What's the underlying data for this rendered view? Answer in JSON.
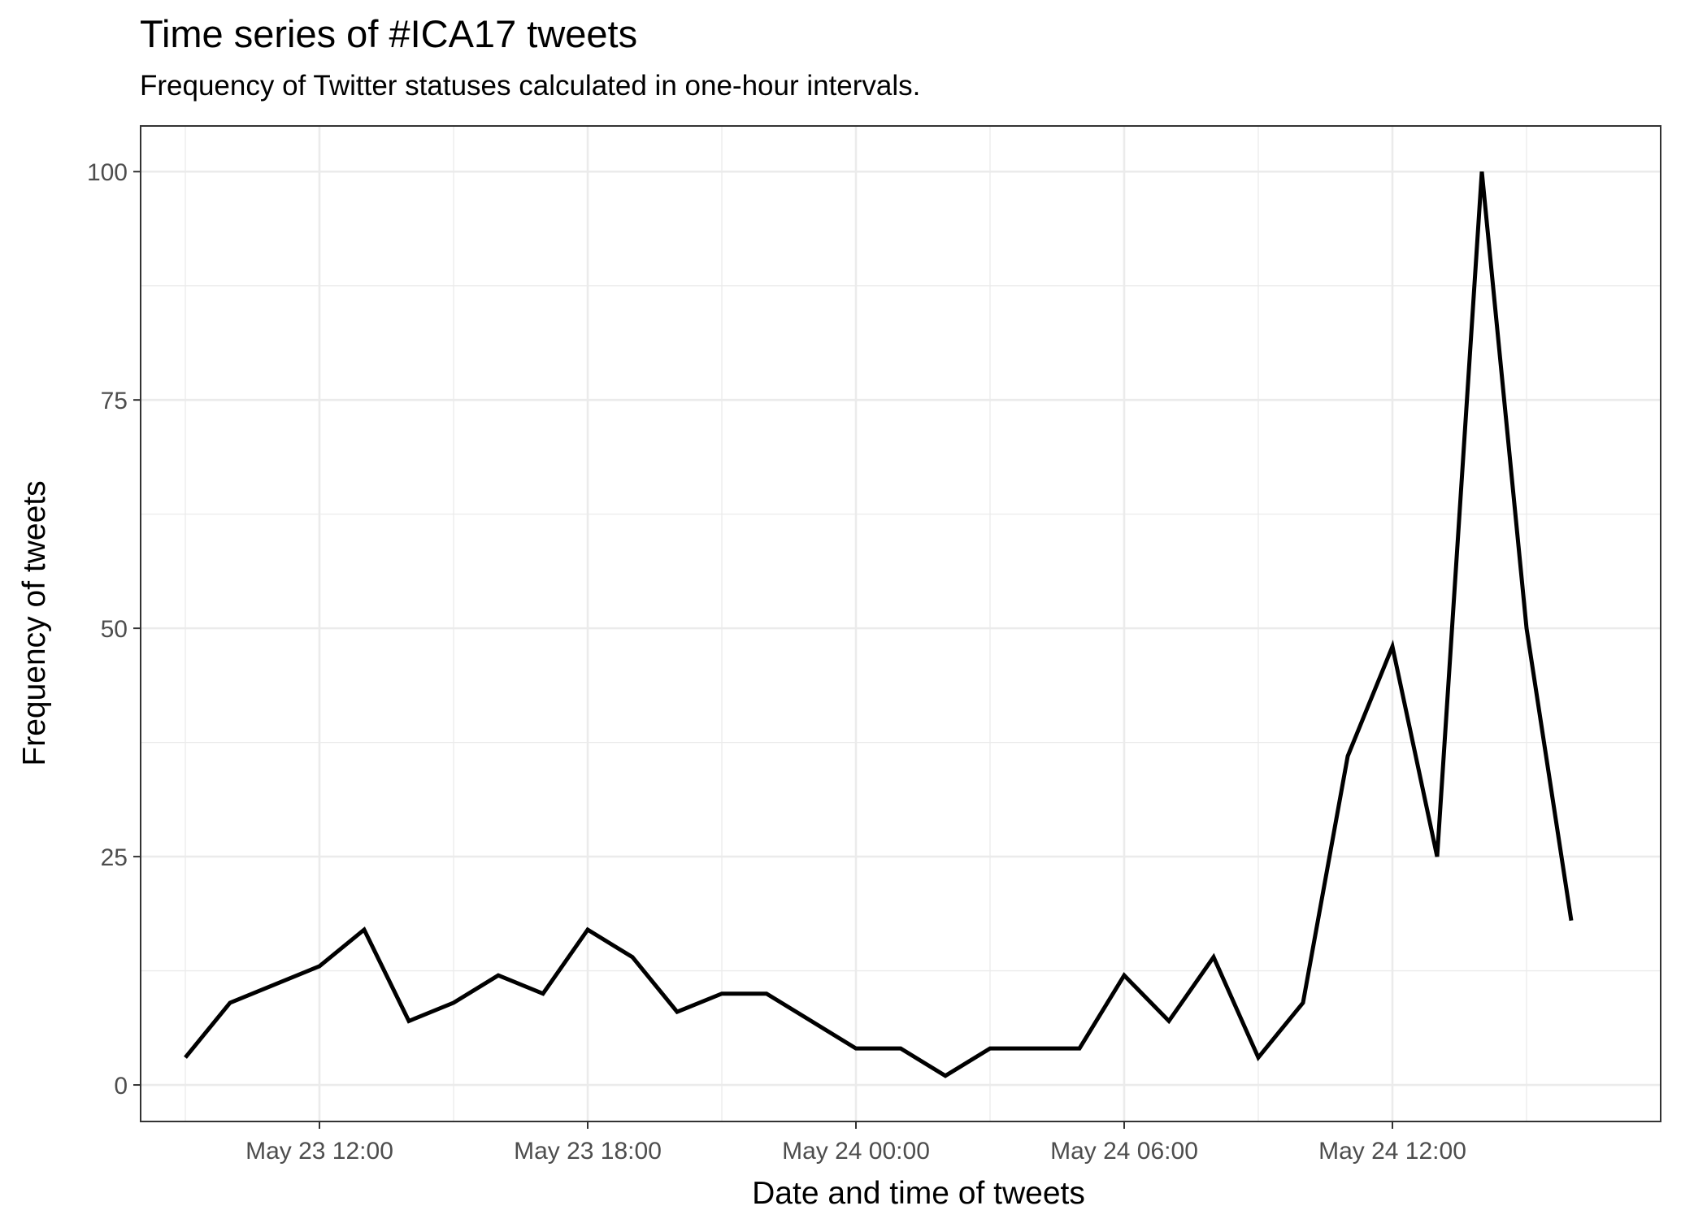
{
  "chart_data": {
    "type": "line",
    "title": "Time series of #ICA17 tweets",
    "subtitle": "Frequency of Twitter statuses calculated in one-hour intervals.",
    "xlabel": "Date and time of tweets",
    "ylabel": "Frequency of tweets",
    "x_tick_labels": [
      "May 23 12:00",
      "May 23 18:00",
      "May 24 00:00",
      "May 24 06:00",
      "May 24 12:00"
    ],
    "y_ticks": [
      0,
      25,
      50,
      75,
      100
    ],
    "ylim": [
      -4,
      105
    ],
    "xlim": [
      "2017-05-23 08:00",
      "2017-05-24 18:00"
    ],
    "grid": true,
    "series": [
      {
        "x": [
          "2017-05-23 09:00",
          "2017-05-23 10:00",
          "2017-05-23 11:00",
          "2017-05-23 12:00",
          "2017-05-23 13:00",
          "2017-05-23 14:00",
          "2017-05-23 15:00",
          "2017-05-23 16:00",
          "2017-05-23 17:00",
          "2017-05-23 18:00",
          "2017-05-23 19:00",
          "2017-05-23 20:00",
          "2017-05-23 21:00",
          "2017-05-23 22:00",
          "2017-05-23 23:00",
          "2017-05-24 00:00",
          "2017-05-24 01:00",
          "2017-05-24 02:00",
          "2017-05-24 03:00",
          "2017-05-24 04:00",
          "2017-05-24 05:00",
          "2017-05-24 06:00",
          "2017-05-24 07:00",
          "2017-05-24 08:00",
          "2017-05-24 09:00",
          "2017-05-24 10:00",
          "2017-05-24 11:00",
          "2017-05-24 12:00",
          "2017-05-24 13:00",
          "2017-05-24 14:00",
          "2017-05-24 15:00",
          "2017-05-24 16:00"
        ],
        "values": [
          3,
          9,
          11,
          13,
          17,
          7,
          9,
          12,
          10,
          17,
          14,
          8,
          10,
          10,
          7,
          4,
          4,
          1,
          4,
          4,
          4,
          12,
          7,
          14,
          3,
          9,
          36,
          48,
          25,
          100,
          50,
          18
        ],
        "color": "#000000"
      }
    ]
  }
}
